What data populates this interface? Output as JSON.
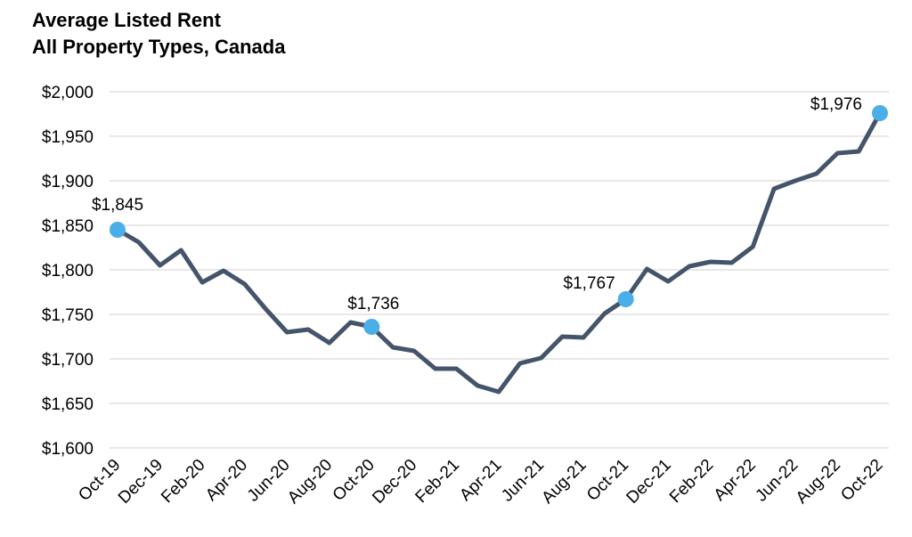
{
  "chart_data": {
    "type": "line",
    "title": "Average Listed Rent",
    "subtitle": "All Property Types, Canada",
    "xlabel": "",
    "ylabel": "",
    "ylim": [
      1600,
      2000
    ],
    "yticks": [
      1600,
      1650,
      1700,
      1750,
      1800,
      1850,
      1900,
      1950,
      2000
    ],
    "ytick_labels": [
      "$1,600",
      "$1,650",
      "$1,700",
      "$1,750",
      "$1,800",
      "$1,850",
      "$1,900",
      "$1,950",
      "$2,000"
    ],
    "x": [
      "Oct-19",
      "Nov-19",
      "Dec-19",
      "Jan-20",
      "Feb-20",
      "Mar-20",
      "Apr-20",
      "May-20",
      "Jun-20",
      "Jul-20",
      "Aug-20",
      "Sep-20",
      "Oct-20",
      "Nov-20",
      "Dec-20",
      "Jan-21",
      "Feb-21",
      "Mar-21",
      "Apr-21",
      "May-21",
      "Jun-21",
      "Jul-21",
      "Aug-21",
      "Sep-21",
      "Oct-21",
      "Nov-21",
      "Dec-21",
      "Jan-22",
      "Feb-22",
      "Mar-22",
      "Apr-22",
      "May-22",
      "Jun-22",
      "Jul-22",
      "Aug-22",
      "Sep-22",
      "Oct-22"
    ],
    "xtick_labels": [
      "Oct-19",
      "Dec-19",
      "Feb-20",
      "Apr-20",
      "Jun-20",
      "Aug-20",
      "Oct-20",
      "Dec-20",
      "Feb-21",
      "Apr-21",
      "Jun-21",
      "Aug-21",
      "Oct-21",
      "Dec-21",
      "Feb-22",
      "Apr-22",
      "Jun-22",
      "Aug-22",
      "Oct-22"
    ],
    "series": [
      {
        "values": [
          1845,
          1831,
          1805,
          1822,
          1786,
          1799,
          1784,
          1756,
          1730,
          1733,
          1718,
          1741,
          1736,
          1713,
          1709,
          1689,
          1689,
          1670,
          1663,
          1695,
          1701,
          1725,
          1724,
          1751,
          1767,
          1801,
          1787,
          1804,
          1809,
          1808,
          1826,
          1891,
          1900,
          1908,
          1931,
          1933,
          1976
        ],
        "color": "#44546a"
      }
    ],
    "highlights": [
      {
        "index": 0,
        "label": "$1,845",
        "color": "#4aaee8"
      },
      {
        "index": 12,
        "label": "$1,736",
        "color": "#4aaee8"
      },
      {
        "index": 24,
        "label": "$1,767",
        "color": "#4aaee8"
      },
      {
        "index": 36,
        "label": "$1,976",
        "color": "#4aaee8"
      }
    ],
    "grid": true,
    "gridline_color": "#d9d9d9",
    "legend": "none"
  }
}
